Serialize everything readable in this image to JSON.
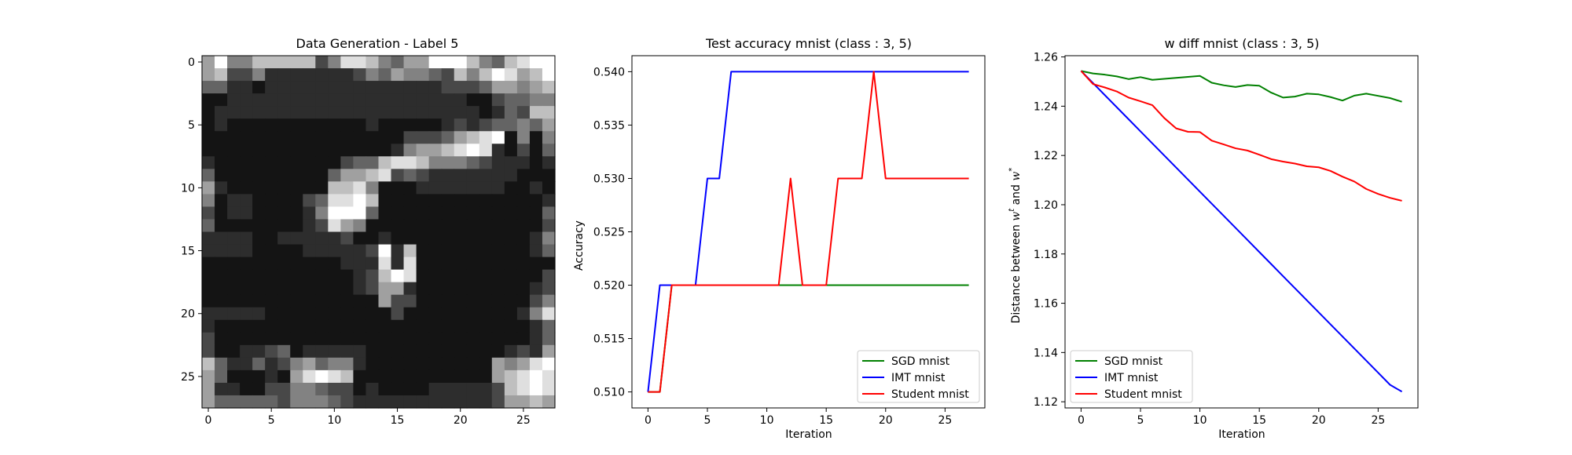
{
  "chart_data": [
    {
      "type": "heatmap",
      "title": "Data Generation - Label 5",
      "colormap": "gray",
      "xticks": [
        0,
        5,
        10,
        15,
        20,
        25
      ],
      "yticks": [
        0,
        5,
        10,
        15,
        20,
        25
      ],
      "size": [
        28,
        28
      ],
      "pixels": [
        "6955777773588754669997547899",
        "6733522222223546554375798679",
        "4422122222222222222333466567",
        "1122222222222222222221134455",
        "1222222222222222222222124377",
        "1211111111111211111232344546",
        "1111111111111111333467891515",
        "1111111111111112566789821314",
        "2111111111134478875554322212",
        "4111111111466783432222222111",
        "6211111111778511122222221121",
        "5122111134889711111111111112",
        "3122111125999411111111111114",
        "4111111123865111111111111113",
        "2222112222231121111111111125",
        "2222111122222392711111111124",
        "1111111111122282811111111111",
        "1111111111112379811111111113",
        "1111111111112366211111111123",
        "1111111111111163311111111135",
        "2222211111111113111111111258",
        "2111111111111111111111111124",
        "3111111111111111111111111124",
        "3112234122222111111111112326",
        "7422423564552111111111165689",
        "6411121689871111111111167898",
        "6221133554331211112222237898",
        "6444443555432222222222236676"
      ]
    },
    {
      "type": "line",
      "title": "Test accuracy mnist (class : 3, 5)",
      "xlabel": "Iteration",
      "ylabel": "Accuracy",
      "xlim": [
        -1.35,
        28.35
      ],
      "ylim": [
        0.5085,
        0.5415
      ],
      "xticks": [
        0,
        5,
        10,
        15,
        20,
        25
      ],
      "yticks": [
        0.51,
        0.515,
        0.52,
        0.525,
        0.53,
        0.535,
        0.54
      ],
      "yticklabels": [
        "0.510",
        "0.515",
        "0.520",
        "0.525",
        "0.530",
        "0.535",
        "0.540"
      ],
      "legend_position": "lower-right",
      "grid": false,
      "series": [
        {
          "name": "SGD mnist",
          "color": "#008000",
          "x": [
            0,
            1,
            2,
            3,
            4,
            5,
            6,
            7,
            8,
            9,
            10,
            11,
            12,
            13,
            14,
            15,
            16,
            17,
            18,
            19,
            20,
            21,
            22,
            23,
            24,
            25,
            26,
            27
          ],
          "values": [
            0.51,
            0.51,
            0.52,
            0.52,
            0.52,
            0.52,
            0.52,
            0.52,
            0.52,
            0.52,
            0.52,
            0.52,
            0.52,
            0.52,
            0.52,
            0.52,
            0.52,
            0.52,
            0.52,
            0.52,
            0.52,
            0.52,
            0.52,
            0.52,
            0.52,
            0.52,
            0.52,
            0.52
          ]
        },
        {
          "name": "IMT mnist",
          "color": "#0000ff",
          "x": [
            0,
            1,
            2,
            3,
            4,
            5,
            6,
            7,
            8,
            9,
            10,
            11,
            12,
            13,
            14,
            15,
            16,
            17,
            18,
            19,
            20,
            21,
            22,
            23,
            24,
            25,
            26,
            27
          ],
          "values": [
            0.51,
            0.52,
            0.52,
            0.52,
            0.52,
            0.53,
            0.53,
            0.54,
            0.54,
            0.54,
            0.54,
            0.54,
            0.54,
            0.54,
            0.54,
            0.54,
            0.54,
            0.54,
            0.54,
            0.54,
            0.54,
            0.54,
            0.54,
            0.54,
            0.54,
            0.54,
            0.54,
            0.54
          ]
        },
        {
          "name": "Student mnist",
          "color": "#ff0000",
          "x": [
            0,
            1,
            2,
            3,
            4,
            5,
            6,
            7,
            8,
            9,
            10,
            11,
            12,
            13,
            14,
            15,
            16,
            17,
            18,
            19,
            20,
            21,
            22,
            23,
            24,
            25,
            26,
            27
          ],
          "values": [
            0.51,
            0.51,
            0.52,
            0.52,
            0.52,
            0.52,
            0.52,
            0.52,
            0.52,
            0.52,
            0.52,
            0.52,
            0.53,
            0.52,
            0.52,
            0.52,
            0.53,
            0.53,
            0.53,
            0.54,
            0.53,
            0.53,
            0.53,
            0.53,
            0.53,
            0.53,
            0.53,
            0.53
          ]
        }
      ]
    },
    {
      "type": "line",
      "title": "w diff mnist (class : 3, 5)",
      "xlabel": "Iteration",
      "ylabel_prefix": "Distance between ",
      "ylabel_w": "w",
      "ylabel_sup_t": "t",
      "ylabel_and": " and ",
      "ylabel_sup_star": "*",
      "xlim": [
        -1.35,
        28.35
      ],
      "ylim": [
        1.1175,
        1.2605
      ],
      "xticks": [
        0,
        5,
        10,
        15,
        20,
        25
      ],
      "yticks": [
        1.12,
        1.14,
        1.16,
        1.18,
        1.2,
        1.22,
        1.24,
        1.26
      ],
      "yticklabels": [
        "1.12",
        "1.14",
        "1.16",
        "1.18",
        "1.20",
        "1.22",
        "1.24",
        "1.26"
      ],
      "legend_position": "lower-left",
      "grid": false,
      "series": [
        {
          "name": "SGD mnist",
          "color": "#008000",
          "x": [
            0,
            1,
            2,
            3,
            4,
            5,
            6,
            7,
            8,
            9,
            10,
            11,
            12,
            13,
            14,
            15,
            16,
            17,
            18,
            19,
            20,
            21,
            22,
            23,
            24,
            25,
            26,
            27
          ],
          "values": [
            1.2543,
            1.2533,
            1.2528,
            1.2521,
            1.251,
            1.2518,
            1.2507,
            1.2511,
            1.2515,
            1.2519,
            1.2523,
            1.2495,
            1.2485,
            1.2478,
            1.2486,
            1.2483,
            1.2455,
            1.2435,
            1.2439,
            1.2451,
            1.2448,
            1.2437,
            1.2423,
            1.2443,
            1.2451,
            1.2442,
            1.2433,
            1.2418
          ]
        },
        {
          "name": "IMT mnist",
          "color": "#0000ff",
          "x": [
            0,
            1,
            2,
            3,
            4,
            5,
            6,
            7,
            8,
            9,
            10,
            11,
            12,
            13,
            14,
            15,
            16,
            17,
            18,
            19,
            20,
            21,
            22,
            23,
            24,
            25,
            26,
            27
          ],
          "values": [
            1.2543,
            1.2494,
            1.2445,
            1.2396,
            1.2347,
            1.2298,
            1.2249,
            1.22,
            1.2151,
            1.2102,
            1.2053,
            1.2004,
            1.1955,
            1.1906,
            1.1857,
            1.1808,
            1.1759,
            1.171,
            1.1661,
            1.1612,
            1.1563,
            1.1514,
            1.1465,
            1.1416,
            1.1367,
            1.1318,
            1.1269,
            1.1241
          ]
        },
        {
          "name": "Student mnist",
          "color": "#ff0000",
          "x": [
            0,
            1,
            2,
            3,
            4,
            5,
            6,
            7,
            8,
            9,
            10,
            11,
            12,
            13,
            14,
            15,
            16,
            17,
            18,
            19,
            20,
            21,
            22,
            23,
            24,
            25,
            26,
            27
          ],
          "values": [
            1.2543,
            1.249,
            1.2476,
            1.246,
            1.2435,
            1.242,
            1.2404,
            1.2352,
            1.231,
            1.2296,
            1.2295,
            1.226,
            1.2245,
            1.2229,
            1.222,
            1.2203,
            1.2185,
            1.2175,
            1.2167,
            1.2156,
            1.2152,
            1.2137,
            1.2114,
            1.2094,
            1.2064,
            1.2044,
            1.2028,
            1.2016
          ]
        }
      ]
    }
  ]
}
